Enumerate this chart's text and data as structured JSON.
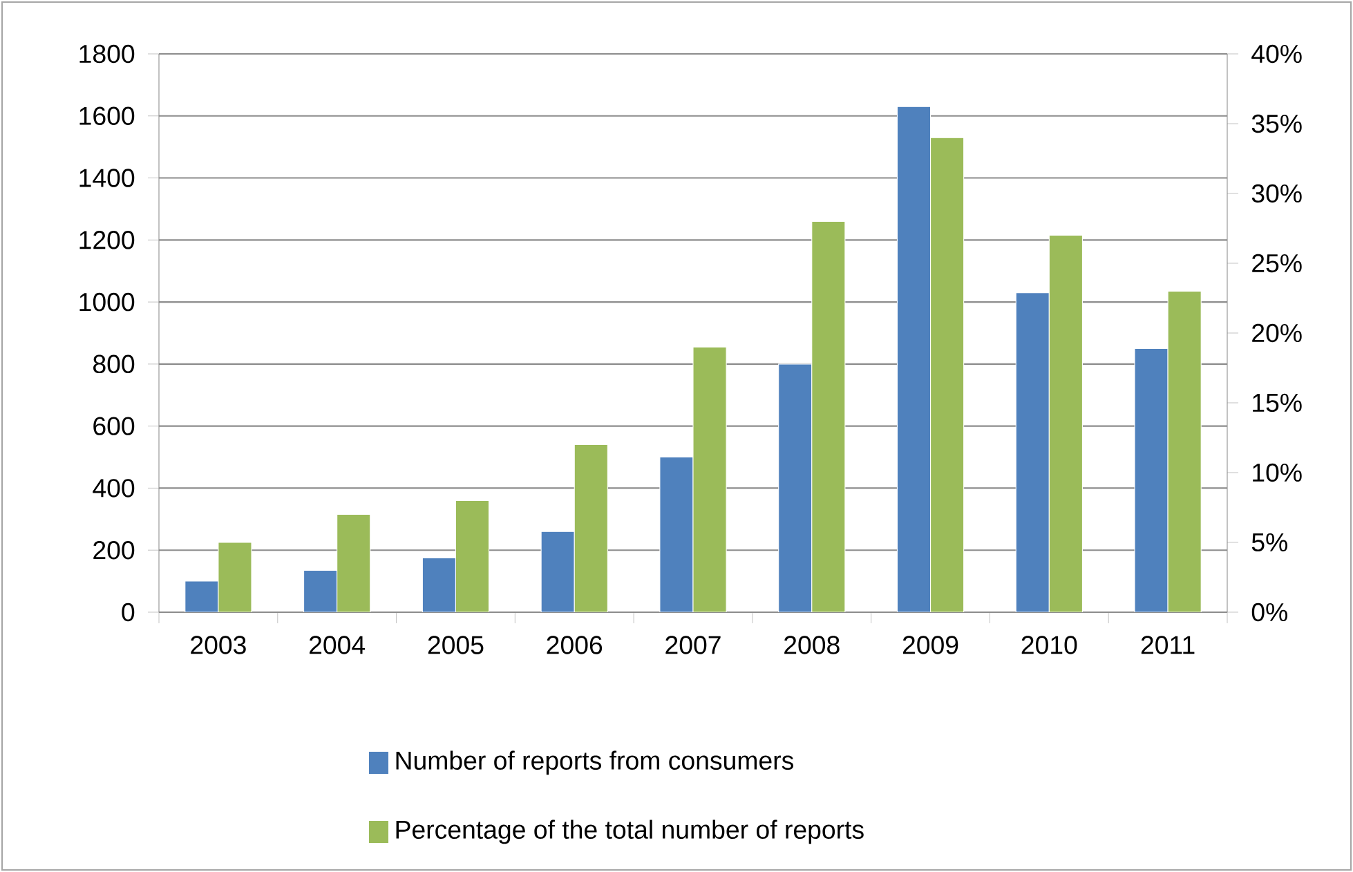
{
  "chart_data": {
    "type": "bar",
    "categories": [
      "2003",
      "2004",
      "2005",
      "2006",
      "2007",
      "2008",
      "2009",
      "2010",
      "2011"
    ],
    "series": [
      {
        "name": "Number of reports from consumers",
        "color": "#4f81bd",
        "values": [
          100,
          135,
          175,
          260,
          500,
          800,
          1630,
          1030,
          850
        ]
      },
      {
        "name": "Percentage of the total number of reports",
        "color": "#9bbb59",
        "axis": "y2",
        "values": [
          5,
          7,
          8,
          12,
          19,
          28,
          34,
          27,
          23
        ]
      }
    ],
    "ylim": [
      0,
      1800
    ],
    "yticks": [
      0,
      200,
      400,
      600,
      800,
      1000,
      1200,
      1400,
      1600,
      1800
    ],
    "y2lim": [
      0,
      40
    ],
    "y2ticks": [
      {
        "value": 0,
        "label": "0%"
      },
      {
        "value": 5,
        "label": "5%"
      },
      {
        "value": 10,
        "label": "10%"
      },
      {
        "value": 15,
        "label": "15%"
      },
      {
        "value": 20,
        "label": "20%"
      },
      {
        "value": 25,
        "label": "25%"
      },
      {
        "value": 30,
        "label": "30%"
      },
      {
        "value": 35,
        "label": "35%"
      },
      {
        "value": 40,
        "label": "40%"
      }
    ],
    "grid": "y",
    "legend": "bottom"
  }
}
